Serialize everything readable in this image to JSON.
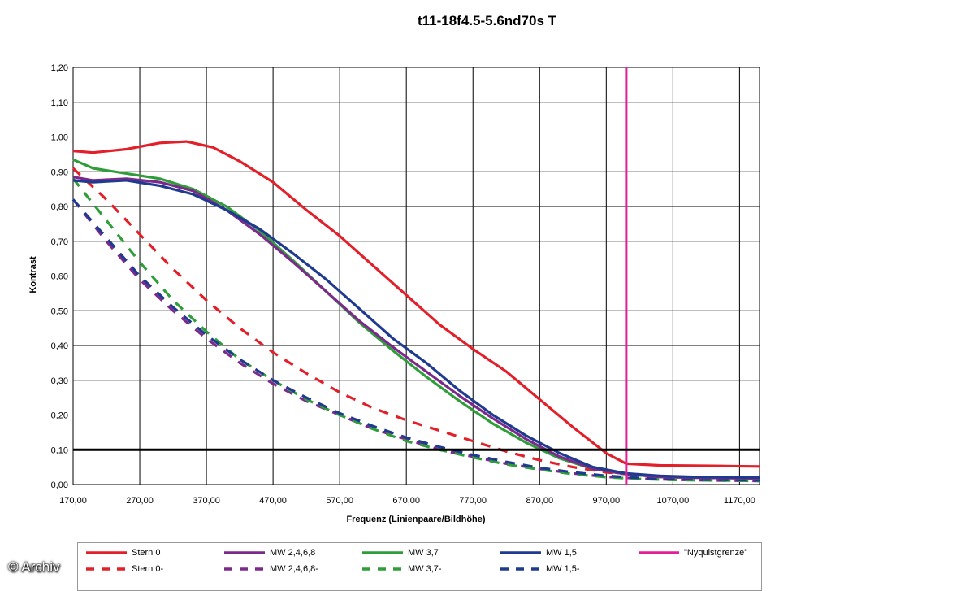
{
  "chart_data": {
    "type": "line",
    "title": "t11-18f4.5-5.6nd70s T",
    "xlabel": "Frequenz (Linienpaare/Bildhöhe)",
    "ylabel": "Kontrast",
    "xlim": [
      170,
      1200
    ],
    "ylim": [
      0,
      1.2
    ],
    "x_ticks": [
      "170,00",
      "270,00",
      "370,00",
      "470,00",
      "570,00",
      "670,00",
      "770,00",
      "870,00",
      "970,00",
      "1070,00",
      "1170,00"
    ],
    "y_ticks": [
      "0,00",
      "0,10",
      "0,20",
      "0,30",
      "0,40",
      "0,50",
      "0,60",
      "0,70",
      "0,80",
      "0,90",
      "1,00",
      "1,10",
      "1,20"
    ],
    "grid": true,
    "reference_line_y": 0.1,
    "nyquist_x": 1000,
    "series": [
      {
        "name": "Stern 0",
        "color": "#e3202a",
        "dashed": false,
        "x": [
          170,
          200,
          250,
          300,
          340,
          380,
          420,
          470,
          520,
          570,
          620,
          670,
          720,
          770,
          820,
          870,
          920,
          970,
          1000,
          1050,
          1100,
          1150,
          1200
        ],
        "y": [
          0.96,
          0.955,
          0.965,
          0.983,
          0.987,
          0.97,
          0.93,
          0.87,
          0.79,
          0.715,
          0.63,
          0.545,
          0.46,
          0.39,
          0.325,
          0.245,
          0.165,
          0.09,
          0.06,
          0.055,
          0.054,
          0.053,
          0.052
        ]
      },
      {
        "name": "MW 2,4,6,8",
        "color": "#7b2a8c",
        "dashed": false,
        "x": [
          170,
          200,
          250,
          300,
          350,
          400,
          450,
          500,
          550,
          600,
          650,
          700,
          750,
          800,
          850,
          900,
          950,
          1000,
          1050,
          1100,
          1150,
          1200
        ],
        "y": [
          0.885,
          0.875,
          0.88,
          0.87,
          0.845,
          0.79,
          0.72,
          0.64,
          0.555,
          0.47,
          0.395,
          0.325,
          0.255,
          0.19,
          0.13,
          0.08,
          0.045,
          0.03,
          0.022,
          0.02,
          0.019,
          0.018
        ]
      },
      {
        "name": "MW 3,7",
        "color": "#2f9e3a",
        "dashed": false,
        "x": [
          170,
          200,
          250,
          300,
          350,
          400,
          450,
          500,
          550,
          600,
          650,
          700,
          750,
          800,
          850,
          900,
          950,
          1000,
          1050,
          1100,
          1150,
          1200
        ],
        "y": [
          0.935,
          0.91,
          0.895,
          0.88,
          0.85,
          0.8,
          0.73,
          0.645,
          0.555,
          0.465,
          0.385,
          0.31,
          0.24,
          0.175,
          0.12,
          0.075,
          0.045,
          0.03,
          0.022,
          0.02,
          0.019,
          0.018
        ]
      },
      {
        "name": "MW 1,5",
        "color": "#1f3a8f",
        "dashed": false,
        "x": [
          170,
          200,
          250,
          300,
          350,
          400,
          450,
          500,
          550,
          600,
          650,
          700,
          750,
          800,
          850,
          900,
          950,
          1000,
          1050,
          1100,
          1150,
          1200
        ],
        "y": [
          0.875,
          0.87,
          0.875,
          0.86,
          0.835,
          0.79,
          0.735,
          0.665,
          0.59,
          0.505,
          0.42,
          0.35,
          0.27,
          0.2,
          0.14,
          0.09,
          0.05,
          0.032,
          0.025,
          0.022,
          0.021,
          0.02
        ]
      },
      {
        "name": "\"Nyquistgrenze\"",
        "color": "#e0209a",
        "dashed": false,
        "x": [
          1000,
          1000
        ],
        "y": [
          0,
          1.2
        ]
      },
      {
        "name": "Stern 0-",
        "color": "#e3202a",
        "dashed": true,
        "x": [
          170,
          220,
          270,
          320,
          370,
          420,
          470,
          520,
          570,
          620,
          670,
          720,
          770,
          820,
          870,
          920,
          970,
          1020,
          1070,
          1120,
          1170,
          1200
        ],
        "y": [
          0.91,
          0.82,
          0.72,
          0.62,
          0.53,
          0.45,
          0.38,
          0.32,
          0.265,
          0.22,
          0.185,
          0.155,
          0.125,
          0.095,
          0.07,
          0.05,
          0.035,
          0.027,
          0.023,
          0.02,
          0.018,
          0.017
        ]
      },
      {
        "name": "MW 2,4,6,8-",
        "color": "#7b2a8c",
        "dashed": true,
        "x": [
          170,
          220,
          270,
          320,
          370,
          420,
          470,
          520,
          570,
          620,
          670,
          720,
          770,
          820,
          870,
          920,
          970,
          1020,
          1070,
          1120,
          1170,
          1200
        ],
        "y": [
          0.82,
          0.7,
          0.59,
          0.5,
          0.42,
          0.35,
          0.29,
          0.24,
          0.2,
          0.16,
          0.13,
          0.1,
          0.08,
          0.06,
          0.045,
          0.032,
          0.022,
          0.017,
          0.014,
          0.012,
          0.011,
          0.01
        ]
      },
      {
        "name": "MW 3,7-",
        "color": "#2f9e3a",
        "dashed": true,
        "x": [
          170,
          220,
          270,
          320,
          370,
          420,
          470,
          520,
          570,
          620,
          670,
          720,
          770,
          820,
          870,
          920,
          970,
          1020,
          1070,
          1120,
          1170,
          1200
        ],
        "y": [
          0.88,
          0.76,
          0.64,
          0.53,
          0.44,
          0.36,
          0.3,
          0.245,
          0.2,
          0.16,
          0.125,
          0.1,
          0.078,
          0.058,
          0.043,
          0.03,
          0.021,
          0.016,
          0.013,
          0.012,
          0.011,
          0.01
        ]
      },
      {
        "name": "MW 1,5-",
        "color": "#1f3a8f",
        "dashed": true,
        "x": [
          170,
          220,
          270,
          320,
          370,
          420,
          470,
          520,
          570,
          620,
          670,
          720,
          770,
          820,
          870,
          920,
          970,
          1020,
          1070,
          1120,
          1170,
          1200
        ],
        "y": [
          0.82,
          0.71,
          0.6,
          0.51,
          0.43,
          0.36,
          0.3,
          0.25,
          0.205,
          0.168,
          0.135,
          0.108,
          0.085,
          0.065,
          0.048,
          0.035,
          0.025,
          0.019,
          0.016,
          0.014,
          0.013,
          0.012
        ]
      }
    ]
  },
  "legend": {
    "items": [
      {
        "label": "Stern 0",
        "color": "#e3202a",
        "dashed": false
      },
      {
        "label": "MW 2,4,6,8",
        "color": "#7b2a8c",
        "dashed": false
      },
      {
        "label": "MW 3,7",
        "color": "#2f9e3a",
        "dashed": false
      },
      {
        "label": "MW 1,5",
        "color": "#1f3a8f",
        "dashed": false
      },
      {
        "label": "\"Nyquistgrenze\"",
        "color": "#e0209a",
        "dashed": false
      },
      {
        "label": "Stern 0-",
        "color": "#e3202a",
        "dashed": true
      },
      {
        "label": "MW 2,4,6,8-",
        "color": "#7b2a8c",
        "dashed": true
      },
      {
        "label": "MW 3,7-",
        "color": "#2f9e3a",
        "dashed": true
      },
      {
        "label": "MW 1,5-",
        "color": "#1f3a8f",
        "dashed": true
      }
    ]
  },
  "watermark": "© Archiv"
}
